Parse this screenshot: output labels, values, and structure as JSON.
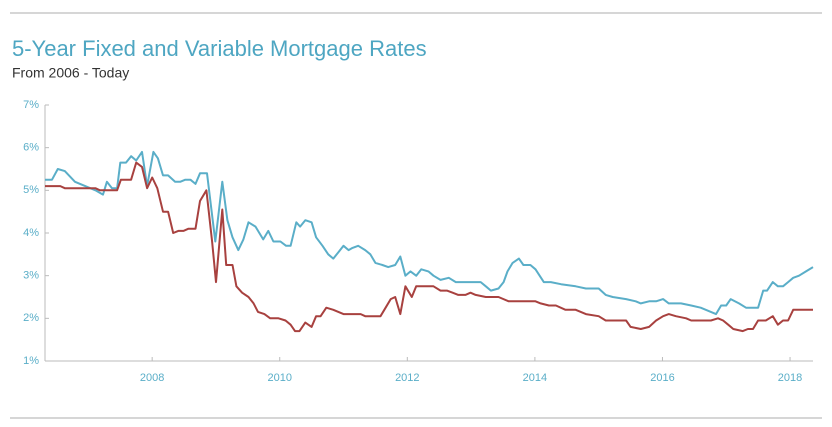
{
  "chart_data": {
    "type": "line",
    "title": "5-Year Fixed and Variable Mortgage Rates",
    "subtitle": "From 2006 - Today",
    "xlim": [
      2006.32,
      2018.36
    ],
    "xticks": [
      2008,
      2010,
      2012,
      2014,
      2016,
      2018
    ],
    "ylim": [
      1,
      7
    ],
    "yticks": [
      {
        "value": 1,
        "label": "1%"
      },
      {
        "value": 2,
        "label": "2%"
      },
      {
        "value": 3,
        "label": "3%"
      },
      {
        "value": 4,
        "label": "4%"
      },
      {
        "value": 5,
        "label": "5%"
      },
      {
        "value": 6,
        "label": "6%"
      },
      {
        "value": 7,
        "label": "7%"
      }
    ],
    "grid": false,
    "series": [
      {
        "color": "#5aaec8",
        "x": [
          2006.32,
          2006.43,
          2006.52,
          2006.63,
          2006.79,
          2006.95,
          2007.11,
          2007.23,
          2007.29,
          2007.37,
          2007.45,
          2007.5,
          2007.59,
          2007.67,
          2007.75,
          2007.84,
          2007.92,
          2008.02,
          2008.09,
          2008.17,
          2008.25,
          2008.36,
          2008.44,
          2008.52,
          2008.6,
          2008.68,
          2008.75,
          2008.86,
          2008.99,
          2009.1,
          2009.18,
          2009.26,
          2009.35,
          2009.43,
          2009.51,
          2009.62,
          2009.74,
          2009.82,
          2009.9,
          2010.01,
          2010.1,
          2010.17,
          2010.26,
          2010.32,
          2010.4,
          2010.5,
          2010.57,
          2010.67,
          2010.76,
          2010.84,
          2010.92,
          2011.0,
          2011.08,
          2011.14,
          2011.23,
          2011.34,
          2011.42,
          2011.5,
          2011.61,
          2011.7,
          2011.81,
          2011.89,
          2011.97,
          2012.05,
          2012.14,
          2012.22,
          2012.33,
          2012.41,
          2012.52,
          2012.65,
          2012.76,
          2013.15,
          2013.23,
          2013.31,
          2013.43,
          2013.51,
          2013.57,
          2013.65,
          2013.75,
          2013.82,
          2013.93,
          2014.01,
          2014.14,
          2014.25,
          2014.41,
          2014.64,
          2014.8,
          2015.0,
          2015.11,
          2015.22,
          2015.43,
          2015.58,
          2015.66,
          2015.79,
          2015.9,
          2016.01,
          2016.1,
          2016.29,
          2016.45,
          2016.6,
          2016.76,
          2016.84,
          2016.92,
          2017.0,
          2017.07,
          2017.2,
          2017.31,
          2017.5,
          2017.58,
          2017.64,
          2017.73,
          2017.81,
          2017.89,
          2017.97,
          2018.05,
          2018.14,
          2018.25,
          2018.36
        ],
        "values": [
          5.25,
          5.25,
          5.5,
          5.45,
          5.2,
          5.1,
          5.0,
          4.9,
          5.2,
          5.05,
          5.05,
          5.65,
          5.65,
          5.8,
          5.7,
          5.9,
          5.1,
          5.9,
          5.75,
          5.35,
          5.35,
          5.2,
          5.2,
          5.25,
          5.25,
          5.15,
          5.4,
          5.4,
          3.8,
          5.2,
          4.3,
          3.9,
          3.6,
          3.85,
          4.25,
          4.15,
          3.85,
          4.05,
          3.8,
          3.8,
          3.7,
          3.7,
          4.25,
          4.15,
          4.3,
          4.25,
          3.9,
          3.7,
          3.5,
          3.4,
          3.55,
          3.7,
          3.6,
          3.65,
          3.7,
          3.6,
          3.5,
          3.3,
          3.25,
          3.2,
          3.25,
          3.45,
          3.0,
          3.1,
          3.0,
          3.15,
          3.1,
          3.0,
          2.9,
          2.95,
          2.85,
          2.85,
          2.75,
          2.65,
          2.7,
          2.85,
          3.1,
          3.3,
          3.4,
          3.25,
          3.25,
          3.15,
          2.85,
          2.85,
          2.8,
          2.75,
          2.7,
          2.7,
          2.55,
          2.5,
          2.45,
          2.4,
          2.35,
          2.4,
          2.4,
          2.45,
          2.35,
          2.35,
          2.3,
          2.25,
          2.15,
          2.1,
          2.3,
          2.3,
          2.45,
          2.35,
          2.25,
          2.25,
          2.65,
          2.65,
          2.85,
          2.75,
          2.75,
          2.85,
          2.95,
          3.0,
          3.1,
          3.2
        ]
      },
      {
        "color": "#a8413f",
        "x": [
          2006.32,
          2006.56,
          2006.63,
          2007.11,
          2007.18,
          2007.45,
          2007.51,
          2007.67,
          2007.75,
          2007.84,
          2007.92,
          2008.0,
          2008.08,
          2008.17,
          2008.25,
          2008.33,
          2008.41,
          2008.49,
          2008.57,
          2008.68,
          2008.75,
          2008.85,
          2008.94,
          2009.0,
          2009.1,
          2009.16,
          2009.26,
          2009.32,
          2009.41,
          2009.51,
          2009.59,
          2009.66,
          2009.76,
          2009.85,
          2009.98,
          2010.09,
          2010.17,
          2010.24,
          2010.31,
          2010.4,
          2010.5,
          2010.57,
          2010.64,
          2010.73,
          2010.84,
          2010.92,
          2011.0,
          2011.27,
          2011.34,
          2011.58,
          2011.66,
          2011.74,
          2011.81,
          2011.89,
          2011.97,
          2012.07,
          2012.14,
          2012.41,
          2012.52,
          2012.62,
          2012.71,
          2012.8,
          2012.91,
          2012.99,
          2013.07,
          2013.23,
          2013.43,
          2013.59,
          2014.01,
          2014.09,
          2014.22,
          2014.33,
          2014.48,
          2014.64,
          2014.8,
          2015.0,
          2015.11,
          2015.43,
          2015.5,
          2015.66,
          2015.79,
          2015.9,
          2016.01,
          2016.1,
          2016.21,
          2016.37,
          2016.45,
          2016.76,
          2016.87,
          2016.95,
          2017.03,
          2017.11,
          2017.26,
          2017.34,
          2017.42,
          2017.5,
          2017.62,
          2017.73,
          2017.81,
          2017.89,
          2017.97,
          2018.05,
          2018.36
        ],
        "values": [
          5.1,
          5.1,
          5.05,
          5.05,
          5.0,
          5.0,
          5.25,
          5.25,
          5.65,
          5.55,
          5.05,
          5.3,
          5.05,
          4.5,
          4.5,
          4.0,
          4.05,
          4.05,
          4.1,
          4.1,
          4.75,
          5.0,
          3.8,
          2.85,
          4.55,
          3.25,
          3.25,
          2.75,
          2.6,
          2.5,
          2.35,
          2.15,
          2.1,
          2.0,
          2.0,
          1.95,
          1.85,
          1.7,
          1.7,
          1.9,
          1.8,
          2.05,
          2.05,
          2.25,
          2.2,
          2.15,
          2.1,
          2.1,
          2.05,
          2.05,
          2.25,
          2.45,
          2.5,
          2.1,
          2.75,
          2.5,
          2.75,
          2.75,
          2.65,
          2.65,
          2.6,
          2.55,
          2.55,
          2.6,
          2.55,
          2.5,
          2.5,
          2.4,
          2.4,
          2.35,
          2.3,
          2.3,
          2.2,
          2.2,
          2.1,
          2.05,
          1.95,
          1.95,
          1.8,
          1.75,
          1.8,
          1.95,
          2.05,
          2.1,
          2.05,
          2.0,
          1.95,
          1.95,
          2.0,
          1.95,
          1.85,
          1.75,
          1.7,
          1.75,
          1.75,
          1.95,
          1.95,
          2.05,
          1.85,
          1.95,
          1.95,
          2.2,
          2.2
        ]
      }
    ]
  }
}
